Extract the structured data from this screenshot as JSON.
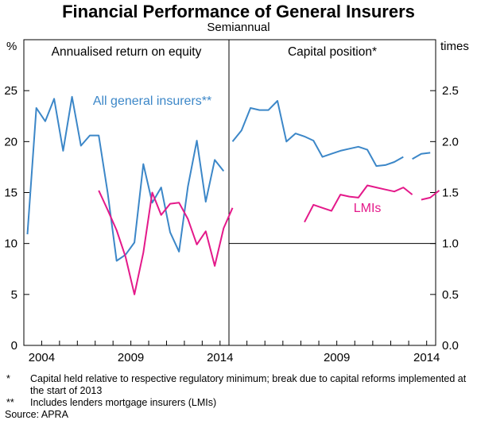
{
  "chart_data": {
    "type": "line",
    "title": "Financial Performance of General Insurers",
    "subtitle": "Semiannual",
    "left_unit": "%",
    "right_unit": "times",
    "panels": [
      {
        "title": "Annualised return on equity",
        "x_range": [
          2003.0,
          2014.5
        ],
        "y_range": [
          0,
          30
        ],
        "y_ticks": [
          0,
          5,
          10,
          15,
          20,
          25
        ],
        "x_ticks": [
          2004,
          2009,
          2014
        ],
        "series": [
          {
            "name": "All general insurers**",
            "color": "#3c87c8",
            "points": [
              [
                2003.2,
                10.9
              ],
              [
                2003.7,
                23.3
              ],
              [
                2004.2,
                22.0
              ],
              [
                2004.7,
                24.2
              ],
              [
                2005.2,
                19.1
              ],
              [
                2005.7,
                24.4
              ],
              [
                2006.2,
                19.6
              ],
              [
                2006.7,
                20.6
              ],
              [
                2007.2,
                20.6
              ],
              [
                2007.7,
                15.0
              ],
              [
                2008.2,
                8.3
              ],
              [
                2008.7,
                8.9
              ],
              [
                2009.2,
                10.1
              ],
              [
                2009.7,
                17.8
              ],
              [
                2010.2,
                14.0
              ],
              [
                2010.7,
                15.5
              ],
              [
                2011.2,
                11.1
              ],
              [
                2011.7,
                9.2
              ],
              [
                2012.2,
                15.6
              ],
              [
                2012.7,
                20.1
              ],
              [
                2013.2,
                14.1
              ],
              [
                2013.7,
                18.2
              ],
              [
                2014.2,
                17.1
              ]
            ]
          },
          {
            "name": "LMIs",
            "color": "#e4198a",
            "points": [
              [
                2007.2,
                15.2
              ],
              [
                2007.7,
                13.3
              ],
              [
                2008.2,
                11.3
              ],
              [
                2008.7,
                8.7
              ],
              [
                2009.2,
                5.0
              ],
              [
                2009.7,
                9.1
              ],
              [
                2010.2,
                15.0
              ],
              [
                2010.7,
                12.8
              ],
              [
                2011.2,
                13.9
              ],
              [
                2011.7,
                14.0
              ],
              [
                2012.2,
                12.4
              ],
              [
                2012.7,
                9.9
              ],
              [
                2013.2,
                11.2
              ],
              [
                2013.7,
                7.8
              ],
              [
                2014.2,
                11.5
              ],
              [
                2014.7,
                13.5
              ]
            ]
          }
        ],
        "labels": [
          {
            "text": "All general insurers**",
            "series": 0,
            "x": 2010.2,
            "y": 23.6
          }
        ]
      },
      {
        "title": "Capital position*",
        "x_range": [
          2003.0,
          2014.5
        ],
        "y_range": [
          0,
          3
        ],
        "y_ticks": [
          0.0,
          0.5,
          1.0,
          1.5,
          2.0,
          2.5
        ],
        "y_tick_labels": [
          "0.0",
          "0.5",
          "1.0",
          "1.5",
          "2.0",
          "2.5"
        ],
        "x_ticks": [
          2009,
          2014
        ],
        "series": [
          {
            "name": "All general insurers",
            "color": "#3c87c8",
            "segments": [
              [
                [
                  2003.2,
                  2.0
                ],
                [
                  2003.7,
                  2.11
                ],
                [
                  2004.2,
                  2.33
                ],
                [
                  2004.7,
                  2.31
                ],
                [
                  2005.2,
                  2.31
                ],
                [
                  2005.7,
                  2.4
                ],
                [
                  2006.2,
                  2.0
                ],
                [
                  2006.7,
                  2.08
                ],
                [
                  2007.2,
                  2.05
                ],
                [
                  2007.7,
                  2.01
                ],
                [
                  2008.2,
                  1.85
                ],
                [
                  2008.7,
                  1.88
                ],
                [
                  2009.2,
                  1.91
                ],
                [
                  2009.7,
                  1.93
                ],
                [
                  2010.2,
                  1.95
                ],
                [
                  2010.7,
                  1.92
                ],
                [
                  2011.2,
                  1.76
                ],
                [
                  2011.7,
                  1.77
                ],
                [
                  2012.2,
                  1.8
                ],
                [
                  2012.7,
                  1.85
                ]
              ],
              [
                [
                  2013.2,
                  1.83
                ],
                [
                  2013.7,
                  1.88
                ],
                [
                  2014.2,
                  1.89
                ]
              ]
            ]
          },
          {
            "name": "LMIs",
            "color": "#e4198a",
            "segments": [
              [
                [
                  2007.2,
                  1.21
                ],
                [
                  2007.7,
                  1.38
                ],
                [
                  2008.2,
                  1.35
                ],
                [
                  2008.7,
                  1.32
                ],
                [
                  2009.2,
                  1.48
                ],
                [
                  2009.7,
                  1.46
                ],
                [
                  2010.2,
                  1.45
                ],
                [
                  2010.7,
                  1.57
                ],
                [
                  2011.2,
                  1.55
                ],
                [
                  2011.7,
                  1.53
                ],
                [
                  2012.2,
                  1.51
                ],
                [
                  2012.7,
                  1.55
                ],
                [
                  2013.2,
                  1.48
                ]
              ],
              [
                [
                  2013.7,
                  1.43
                ],
                [
                  2014.2,
                  1.45
                ],
                [
                  2014.7,
                  1.52
                ]
              ]
            ]
          }
        ],
        "labels": [
          {
            "text": "LMIs",
            "series": 1,
            "x": 2010.7,
            "y": 1.31
          }
        ]
      }
    ]
  },
  "footnotes": [
    {
      "mark": "*",
      "text": "Capital held relative to respective regulatory minimum; break due to capital reforms implemented at the start of 2013"
    },
    {
      "mark": "**",
      "text": "Includes lenders mortgage insurers (LMIs)"
    }
  ],
  "source": "Source: APRA"
}
